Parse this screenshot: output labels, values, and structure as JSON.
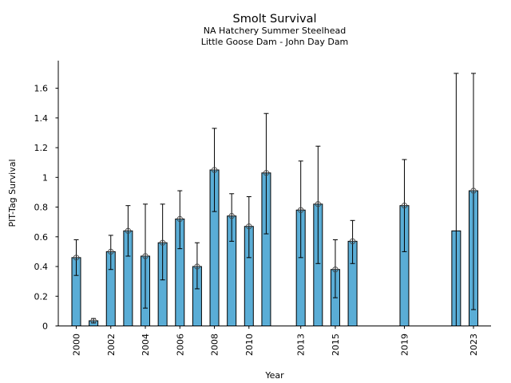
{
  "chart_data": {
    "type": "bar",
    "title": "Smolt Survival",
    "subtitle": [
      "NA Hatchery Summer Steelhead",
      "Little Goose Dam - John Day Dam"
    ],
    "xlabel": "Year",
    "ylabel": "PIT-Tag Survival",
    "ylim": [
      0,
      1.78
    ],
    "xlim": [
      1999.0,
      2024.0
    ],
    "yticks": [
      0,
      0.2,
      0.4,
      0.6,
      0.8,
      1,
      1.2,
      1.4,
      1.6
    ],
    "ytick_labels": [
      "0",
      "0.2",
      "0.4",
      "0.6",
      "0.8",
      "1",
      "1.2",
      "1.4",
      "1.6"
    ],
    "xticks": [
      2000,
      2002,
      2004,
      2006,
      2008,
      2010,
      2013,
      2015,
      2019,
      2023
    ],
    "xtick_labels": [
      "2000",
      "2002",
      "2004",
      "2006",
      "2008",
      "2010",
      "2013",
      "2015",
      "2019",
      "2023"
    ],
    "grid": false,
    "bar_color": "#5aadd6",
    "series": [
      {
        "name": "PIT-Tag Survival",
        "points": [
          {
            "year": 2000,
            "value": 0.46,
            "lower": 0.34,
            "upper": 0.58,
            "marker": true
          },
          {
            "year": 2001,
            "value": 0.035,
            "lower": 0.02,
            "upper": 0.05,
            "marker": true
          },
          {
            "year": 2002,
            "value": 0.5,
            "lower": 0.38,
            "upper": 0.61,
            "marker": true
          },
          {
            "year": 2003,
            "value": 0.64,
            "lower": 0.47,
            "upper": 0.81,
            "marker": true
          },
          {
            "year": 2004,
            "value": 0.47,
            "lower": 0.12,
            "upper": 0.82,
            "marker": true
          },
          {
            "year": 2005,
            "value": 0.56,
            "lower": 0.31,
            "upper": 0.82,
            "marker": true
          },
          {
            "year": 2006,
            "value": 0.72,
            "lower": 0.52,
            "upper": 0.91,
            "marker": true
          },
          {
            "year": 2007,
            "value": 0.4,
            "lower": 0.25,
            "upper": 0.56,
            "marker": true
          },
          {
            "year": 2008,
            "value": 1.05,
            "lower": 0.77,
            "upper": 1.33,
            "marker": true
          },
          {
            "year": 2009,
            "value": 0.74,
            "lower": 0.57,
            "upper": 0.89,
            "marker": true
          },
          {
            "year": 2010,
            "value": 0.67,
            "lower": 0.46,
            "upper": 0.87,
            "marker": true
          },
          {
            "year": 2011,
            "value": 1.03,
            "lower": 0.62,
            "upper": 1.43,
            "marker": true
          },
          {
            "year": 2013,
            "value": 0.78,
            "lower": 0.46,
            "upper": 1.11,
            "marker": true
          },
          {
            "year": 2014,
            "value": 0.82,
            "lower": 0.42,
            "upper": 1.21,
            "marker": true
          },
          {
            "year": 2015,
            "value": 0.38,
            "lower": 0.19,
            "upper": 0.58,
            "marker": true
          },
          {
            "year": 2016,
            "value": 0.57,
            "lower": 0.42,
            "upper": 0.71,
            "marker": true
          },
          {
            "year": 2019,
            "value": 0.81,
            "lower": 0.5,
            "upper": 1.12,
            "marker": true
          },
          {
            "year": 2022,
            "value": 0.64,
            "lower": 0.0,
            "upper": 1.7,
            "marker": false,
            "lower_cap": false
          },
          {
            "year": 2023,
            "value": 0.91,
            "lower": 0.11,
            "upper": 1.7,
            "marker": true
          }
        ]
      }
    ]
  }
}
